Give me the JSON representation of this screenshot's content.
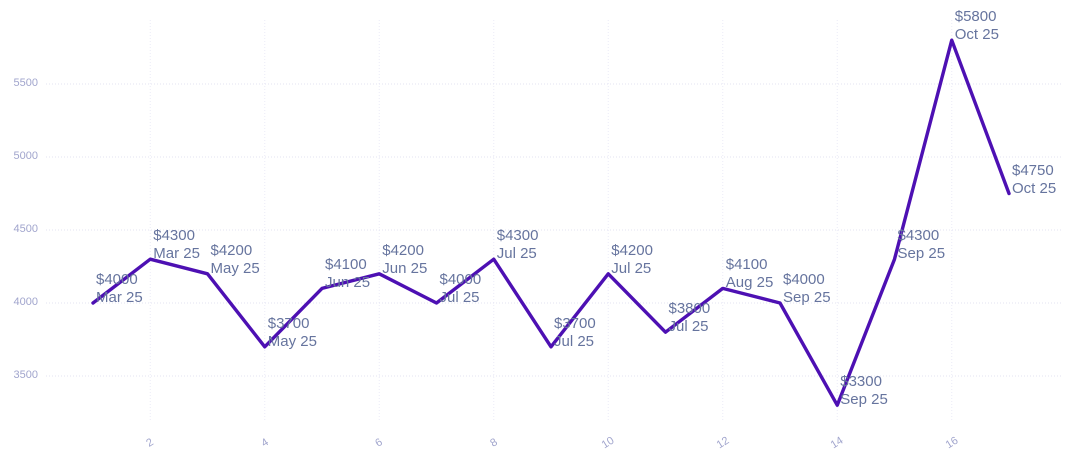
{
  "chart_data": {
    "type": "line",
    "title": "",
    "xlabel": "",
    "ylabel": "",
    "legend": "none",
    "grid": true,
    "x": [
      1,
      2,
      3,
      4,
      5,
      6,
      7,
      8,
      9,
      10,
      11,
      12,
      13,
      14,
      15,
      16,
      17
    ],
    "values": [
      4000,
      4300,
      4200,
      3700,
      4100,
      4200,
      4000,
      4300,
      3700,
      4200,
      3800,
      4100,
      4000,
      3300,
      4300,
      5800,
      4750
    ],
    "point_labels": [
      {
        "value": "$4000",
        "date": "Mar 25"
      },
      {
        "value": "$4300",
        "date": "Mar 25"
      },
      {
        "value": "$4200",
        "date": "May 25"
      },
      {
        "value": "$3700",
        "date": "May 25"
      },
      {
        "value": "$4100",
        "date": "Jun 25"
      },
      {
        "value": "$4200",
        "date": "Jun 25"
      },
      {
        "value": "$4000",
        "date": "Jul 25"
      },
      {
        "value": "$4300",
        "date": "Jul 25"
      },
      {
        "value": "$3700",
        "date": "Jul 25"
      },
      {
        "value": "$4200",
        "date": "Jul 25"
      },
      {
        "value": "$3800",
        "date": "Jul 25"
      },
      {
        "value": "$4100",
        "date": "Aug 25"
      },
      {
        "value": "$4000",
        "date": "Sep 25"
      },
      {
        "value": "$3300",
        "date": "Sep 25"
      },
      {
        "value": "$4300",
        "date": "Sep 25"
      },
      {
        "value": "$5800",
        "date": "Oct 25"
      },
      {
        "value": "$4750",
        "date": "Oct 25"
      }
    ],
    "yticks": [
      3500,
      4000,
      4500,
      5000,
      5500
    ],
    "xticks": [
      2,
      4,
      6,
      8,
      10,
      12,
      14,
      16
    ],
    "ylim": [
      3150,
      5950
    ],
    "colors": {
      "line": "#4d10b3",
      "annotation_text": "#66749e",
      "tick_text": "#a1a5cd",
      "gridline_h": "#e3e3f2",
      "gridline_v": "#ebebf7",
      "background": "#ffffff"
    }
  }
}
